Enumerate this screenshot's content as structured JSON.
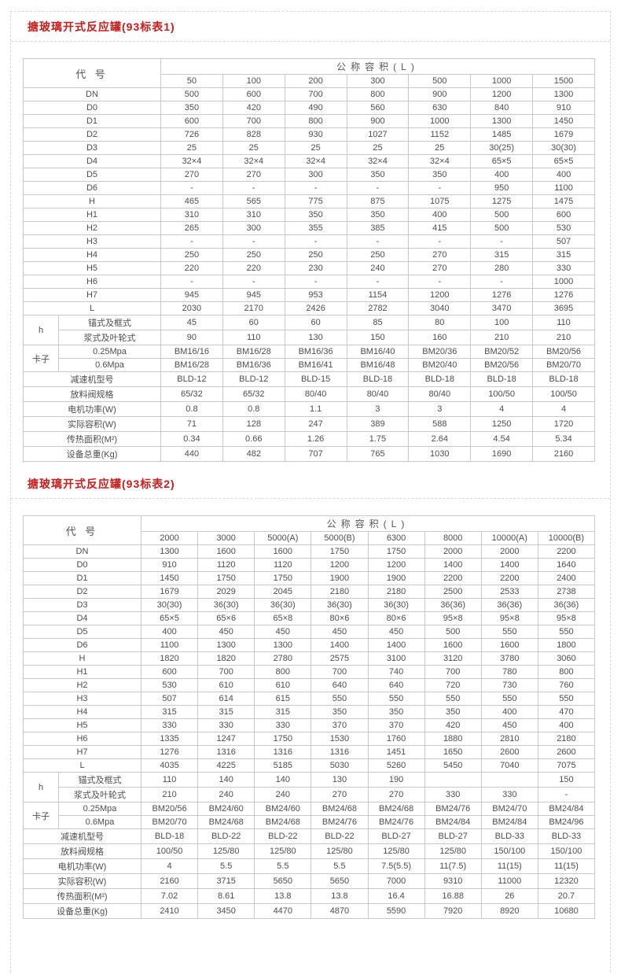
{
  "colors": {
    "title_red": "#cc1b1b",
    "table_border": "#c8c8c8",
    "text": "#4d4d4d",
    "dashed_border": "#d8d8d8"
  },
  "tables": [
    {
      "title": "搪玻璃开式反应罐(93标表1)",
      "code_header": "代 号",
      "capacity_header": "公称容积(L)",
      "columns": [
        "50",
        "100",
        "200",
        "300",
        "500",
        "1000",
        "1500"
      ],
      "rows": [
        {
          "label": "DN",
          "values": [
            "500",
            "600",
            "700",
            "800",
            "900",
            "1200",
            "1300"
          ]
        },
        {
          "label": "D0",
          "values": [
            "350",
            "420",
            "490",
            "560",
            "630",
            "840",
            "910"
          ]
        },
        {
          "label": "D1",
          "values": [
            "600",
            "700",
            "800",
            "900",
            "1000",
            "1300",
            "1450"
          ]
        },
        {
          "label": "D2",
          "values": [
            "726",
            "828",
            "930",
            "1027",
            "1152",
            "1485",
            "1679"
          ]
        },
        {
          "label": "D3",
          "values": [
            "25",
            "25",
            "25",
            "25",
            "25",
            "30(25)",
            "30(30)"
          ]
        },
        {
          "label": "D4",
          "values": [
            "32×4",
            "32×4",
            "32×4",
            "32×4",
            "32×4",
            "65×5",
            "65×5"
          ]
        },
        {
          "label": "D5",
          "values": [
            "270",
            "270",
            "300",
            "350",
            "350",
            "400",
            "400"
          ]
        },
        {
          "label": "D6",
          "values": [
            "-",
            "-",
            "-",
            "-",
            "-",
            "950",
            "1100"
          ]
        },
        {
          "label": "H",
          "values": [
            "465",
            "565",
            "775",
            "875",
            "1075",
            "1275",
            "1475"
          ]
        },
        {
          "label": "H1",
          "values": [
            "310",
            "310",
            "350",
            "350",
            "400",
            "500",
            "600"
          ]
        },
        {
          "label": "H2",
          "values": [
            "265",
            "300",
            "355",
            "385",
            "415",
            "500",
            "530"
          ]
        },
        {
          "label": "H3",
          "values": [
            "-",
            "-",
            "-",
            "-",
            "-",
            "-",
            "507"
          ]
        },
        {
          "label": "H4",
          "values": [
            "250",
            "250",
            "250",
            "250",
            "270",
            "315",
            "315"
          ]
        },
        {
          "label": "H5",
          "values": [
            "220",
            "220",
            "230",
            "240",
            "270",
            "280",
            "330"
          ]
        },
        {
          "label": "H6",
          "values": [
            "-",
            "-",
            "-",
            "-",
            "-",
            "-",
            "1000"
          ]
        },
        {
          "label": "H7",
          "values": [
            "945",
            "945",
            "953",
            "1154",
            "1200",
            "1276",
            "1276"
          ]
        },
        {
          "label": "L",
          "values": [
            "2030",
            "2170",
            "2426",
            "2782",
            "3040",
            "3470",
            "3695"
          ]
        },
        {
          "group": "h",
          "label": "锚式及框式",
          "values": [
            "45",
            "60",
            "60",
            "85",
            "80",
            "100",
            "110"
          ]
        },
        {
          "group": "h",
          "label": "浆式及叶轮式",
          "values": [
            "90",
            "110",
            "130",
            "150",
            "160",
            "210",
            "210"
          ]
        },
        {
          "group": "卡子",
          "label": "0.25Mpa",
          "values": [
            "BM16/16",
            "BM16/28",
            "BM16/36",
            "BM16/40",
            "BM20/36",
            "BM20/52",
            "BM20/56"
          ]
        },
        {
          "group": "卡子",
          "label": "0.6Mpa",
          "values": [
            "BM16/28",
            "BM16/36",
            "BM16/41",
            "BM16/48",
            "BM20/40",
            "BM20/56",
            "BM20/70"
          ]
        },
        {
          "label": "减速机型号",
          "values": [
            "BLD-12",
            "BLD-12",
            "BLD-15",
            "BLD-18",
            "BLD-18",
            "BLD-18",
            "BLD-18"
          ]
        },
        {
          "label": "放料阀规格",
          "values": [
            "65/32",
            "65/32",
            "80/40",
            "80/40",
            "80/40",
            "100/50",
            "100/50"
          ]
        },
        {
          "label": "电机功率(W)",
          "values": [
            "0.8",
            "0.8",
            "1.1",
            "3",
            "3",
            "4",
            "4"
          ]
        },
        {
          "label": "实际容积(W)",
          "values": [
            "71",
            "128",
            "247",
            "389",
            "588",
            "1250",
            "1720"
          ]
        },
        {
          "label": "传热面积(M²)",
          "values": [
            "0.34",
            "0.66",
            "1.26",
            "1.75",
            "2.64",
            "4.54",
            "5.34"
          ]
        },
        {
          "label": "设备总重(Kg)",
          "values": [
            "440",
            "482",
            "707",
            "765",
            "1030",
            "1690",
            "2160"
          ]
        }
      ]
    },
    {
      "title": "搪玻璃开式反应罐(93标表2)",
      "code_header": "代 号",
      "capacity_header": "公称容积(L)",
      "columns": [
        "2000",
        "3000",
        "5000(A)",
        "5000(B)",
        "6300",
        "8000",
        "10000(A)",
        "10000(B)"
      ],
      "rows": [
        {
          "label": "DN",
          "values": [
            "1300",
            "1600",
            "1600",
            "1750",
            "1750",
            "2000",
            "2000",
            "2200"
          ]
        },
        {
          "label": "D0",
          "values": [
            "910",
            "1120",
            "1120",
            "1200",
            "1200",
            "1400",
            "1400",
            "1640"
          ]
        },
        {
          "label": "D1",
          "values": [
            "1450",
            "1750",
            "1750",
            "1900",
            "1900",
            "2200",
            "2200",
            "2400"
          ]
        },
        {
          "label": "D2",
          "values": [
            "1679",
            "2029",
            "2045",
            "2180",
            "2180",
            "2500",
            "2533",
            "2738"
          ]
        },
        {
          "label": "D3",
          "values": [
            "30(30)",
            "36(30)",
            "36(30)",
            "36(30)",
            "36(30)",
            "36(36)",
            "36(36)",
            "36(36)"
          ]
        },
        {
          "label": "D4",
          "values": [
            "65×5",
            "65×6",
            "65×8",
            "80×6",
            "80×6",
            "95×8",
            "95×8",
            "95×8"
          ]
        },
        {
          "label": "D5",
          "values": [
            "400",
            "450",
            "450",
            "450",
            "450",
            "500",
            "550",
            "550"
          ]
        },
        {
          "label": "D6",
          "values": [
            "1100",
            "1300",
            "1300",
            "1400",
            "1400",
            "1600",
            "1600",
            "1800"
          ]
        },
        {
          "label": "H",
          "values": [
            "1820",
            "1820",
            "2780",
            "2575",
            "3100",
            "3120",
            "3780",
            "3060"
          ]
        },
        {
          "label": "H1",
          "values": [
            "600",
            "700",
            "800",
            "700",
            "740",
            "700",
            "780",
            "800"
          ]
        },
        {
          "label": "H2",
          "values": [
            "530",
            "610",
            "610",
            "640",
            "640",
            "720",
            "730",
            "760"
          ]
        },
        {
          "label": "H3",
          "values": [
            "507",
            "614",
            "615",
            "550",
            "550",
            "550",
            "550",
            "550"
          ]
        },
        {
          "label": "H4",
          "values": [
            "315",
            "315",
            "315",
            "350",
            "350",
            "350",
            "400",
            "470"
          ]
        },
        {
          "label": "H5",
          "values": [
            "330",
            "330",
            "330",
            "370",
            "370",
            "420",
            "450",
            "400"
          ]
        },
        {
          "label": "H6",
          "values": [
            "1335",
            "1247",
            "1750",
            "1530",
            "1760",
            "1880",
            "2810",
            "2180"
          ]
        },
        {
          "label": "H7",
          "values": [
            "1276",
            "1316",
            "1316",
            "1316",
            "1451",
            "1650",
            "2600",
            "2600"
          ]
        },
        {
          "label": "L",
          "values": [
            "4035",
            "4225",
            "5185",
            "5030",
            "5260",
            "5450",
            "7040",
            "7075"
          ]
        },
        {
          "group": "h",
          "label": "锚式及框式",
          "values": [
            "110",
            "140",
            "140",
            "130",
            "190",
            "",
            "",
            "150"
          ]
        },
        {
          "group": "h",
          "label": "浆式及叶轮式",
          "values": [
            "210",
            "240",
            "240",
            "270",
            "270",
            "330",
            "330",
            "-"
          ]
        },
        {
          "group": "卡子",
          "label": "0.25Mpa",
          "values": [
            "BM20/56",
            "BM24/60",
            "BM24/60",
            "BM24/68",
            "BM24/68",
            "BM24/76",
            "BM24/70",
            "BM24/84"
          ]
        },
        {
          "group": "卡子",
          "label": "0.6Mpa",
          "values": [
            "BM20/70",
            "BM24/68",
            "BM24/68",
            "BM24/76",
            "BM24/76",
            "BM24/84",
            "BM24/84",
            "BM24/96"
          ]
        },
        {
          "label": "减速机型号",
          "values": [
            "BLD-18",
            "BLD-22",
            "BLD-22",
            "BLD-22",
            "BLD-27",
            "BLD-27",
            "BLD-33",
            "BLD-33"
          ]
        },
        {
          "label": "放料阀规格",
          "values": [
            "100/50",
            "125/80",
            "125/80",
            "125/80",
            "125/80",
            "125/80",
            "150/100",
            "150/100"
          ]
        },
        {
          "label": "电机功率(W)",
          "values": [
            "4",
            "5.5",
            "5.5",
            "5.5",
            "7.5(5.5)",
            "11(7.5)",
            "11(15)",
            "11(15)"
          ]
        },
        {
          "label": "实际容积(W)",
          "values": [
            "2160",
            "3715",
            "5650",
            "5650",
            "7000",
            "9310",
            "11000",
            "12320"
          ]
        },
        {
          "label": "传热面积(M²)",
          "values": [
            "7.02",
            "8.61",
            "13.8",
            "13.8",
            "16.4",
            "16.88",
            "26",
            "20.7"
          ]
        },
        {
          "label": "设备总重(Kg)",
          "values": [
            "2410",
            "3450",
            "4470",
            "4870",
            "5590",
            "7920",
            "8920",
            "10680"
          ]
        }
      ]
    }
  ]
}
